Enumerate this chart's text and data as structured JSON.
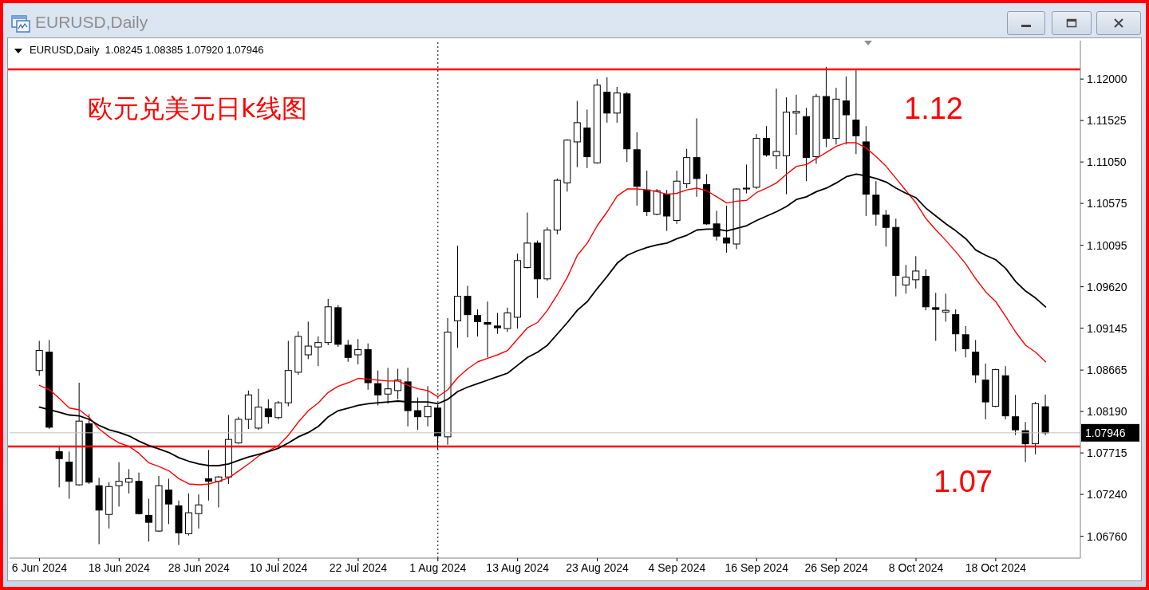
{
  "chart_data": {
    "type": "candlestick",
    "title": "EURUSD,Daily",
    "subtitle": "EURUSD,Daily  1.08245 1.08385 1.07920 1.07946",
    "annotations": [
      "欧元兑美元日k线图",
      "1.07"
    ],
    "color": "#000000",
    "categories": [
      "6 Jun 2024",
      null,
      null,
      null,
      null,
      null,
      null,
      null,
      "18 Jun 2024",
      null,
      null,
      null,
      null,
      null,
      null,
      null,
      "28 Jun 2024",
      null,
      null,
      null,
      null,
      null,
      null,
      null,
      "10 Jul 2024",
      null,
      null,
      null,
      null,
      null,
      null,
      null,
      "22 Jul 2024",
      null,
      null,
      null,
      null,
      null,
      null,
      null,
      "1 Aug 2024",
      null,
      null,
      null,
      null,
      null,
      null,
      null,
      "13 Aug 2024",
      null,
      null,
      null,
      null,
      null,
      null,
      null,
      "23 Aug 2024",
      null,
      null,
      null,
      null,
      null,
      null,
      null,
      "4 Sep 2024",
      null,
      null,
      null,
      null,
      null,
      null,
      null,
      "16 Sep 2024",
      null,
      null,
      null,
      null,
      null,
      null,
      null,
      "26 Sep 2024",
      null,
      null,
      null,
      null,
      null,
      null,
      null,
      "8 Oct 2024",
      null,
      null,
      null,
      null,
      null,
      null,
      null,
      "18 Oct 2024",
      null,
      null,
      null,
      null,
      null
    ],
    "ohlc": [
      [
        1.0866,
        1.09,
        1.086,
        1.0889
      ],
      [
        1.0887,
        1.0901,
        1.0799,
        1.0801
      ],
      [
        1.0773,
        1.078,
        1.0732,
        1.0765
      ],
      [
        1.0761,
        1.0773,
        1.0719,
        1.0739
      ],
      [
        1.0735,
        1.0852,
        1.0734,
        1.0808
      ],
      [
        1.0805,
        1.0816,
        1.0736,
        1.0738
      ],
      [
        1.0734,
        1.0743,
        1.0667,
        1.0706
      ],
      [
        1.0701,
        1.0738,
        1.0685,
        1.0733
      ],
      [
        1.0734,
        1.0761,
        1.071,
        1.0739
      ],
      [
        1.0738,
        1.0753,
        1.0725,
        1.0742
      ],
      [
        1.0739,
        1.0749,
        1.0701,
        1.0702
      ],
      [
        1.07,
        1.0719,
        1.067,
        1.0692
      ],
      [
        1.0682,
        1.0745,
        1.0681,
        1.0734
      ],
      [
        1.0729,
        1.0742,
        1.069,
        1.0713
      ],
      [
        1.0711,
        1.0717,
        1.0666,
        1.068
      ],
      [
        1.0679,
        1.0725,
        1.0677,
        1.0703
      ],
      [
        1.0702,
        1.0724,
        1.0685,
        1.0712
      ],
      [
        1.0742,
        1.0775,
        1.0717,
        1.0739
      ],
      [
        1.0739,
        1.0745,
        1.0709,
        1.0744
      ],
      [
        1.0744,
        1.0815,
        1.0736,
        1.0787
      ],
      [
        1.0783,
        1.0813,
        1.0782,
        1.081
      ],
      [
        1.081,
        1.0843,
        1.0799,
        1.0838
      ],
      [
        1.08,
        1.0845,
        1.0798,
        1.0824
      ],
      [
        1.0822,
        1.0833,
        1.0805,
        1.0813
      ],
      [
        1.0812,
        1.0831,
        1.081,
        1.0829
      ],
      [
        1.0829,
        1.09,
        1.0825,
        1.0866
      ],
      [
        1.0864,
        1.0911,
        1.0861,
        1.0905
      ],
      [
        1.0884,
        1.0922,
        1.0879,
        1.0894
      ],
      [
        1.0893,
        1.0905,
        1.0871,
        1.0898
      ],
      [
        1.0898,
        1.0948,
        1.0895,
        1.0939
      ],
      [
        1.0938,
        1.0941,
        1.0893,
        1.0896
      ],
      [
        1.0895,
        1.0901,
        1.0876,
        1.0881
      ],
      [
        1.0884,
        1.0902,
        1.0873,
        1.089
      ],
      [
        1.089,
        1.0897,
        1.0844,
        1.0852
      ],
      [
        1.0851,
        1.0866,
        1.0826,
        1.0838
      ],
      [
        1.0839,
        1.0869,
        1.0828,
        1.0845
      ],
      [
        1.0843,
        1.0868,
        1.0833,
        1.0855
      ],
      [
        1.0853,
        1.0869,
        1.0802,
        1.082
      ],
      [
        1.082,
        1.0835,
        1.0798,
        1.0813
      ],
      [
        1.0813,
        1.0848,
        1.0802,
        1.0825
      ],
      [
        1.0823,
        1.0827,
        1.0776,
        1.0791
      ],
      [
        1.079,
        1.0926,
        1.0781,
        1.091
      ],
      [
        1.0923,
        1.1009,
        1.0892,
        1.0951
      ],
      [
        1.0951,
        1.0963,
        1.0904,
        1.093
      ],
      [
        1.0929,
        1.0936,
        1.0905,
        1.0922
      ],
      [
        1.0921,
        1.0945,
        1.0881,
        1.0919
      ],
      [
        1.0917,
        1.0932,
        1.0908,
        1.0915
      ],
      [
        1.0914,
        1.0938,
        1.091,
        1.0932
      ],
      [
        1.0927,
        1.1,
        1.0914,
        1.0992
      ],
      [
        1.0984,
        1.1047,
        1.0983,
        1.1012
      ],
      [
        1.1012,
        1.1015,
        1.0949,
        1.0971
      ],
      [
        1.0971,
        1.103,
        1.0969,
        1.1027
      ],
      [
        1.1027,
        1.1086,
        1.1022,
        1.1084
      ],
      [
        1.1081,
        1.1131,
        1.1071,
        1.113
      ],
      [
        1.1128,
        1.1175,
        1.1099,
        1.115
      ],
      [
        1.1144,
        1.1165,
        1.1098,
        1.1111
      ],
      [
        1.1104,
        1.12,
        1.1103,
        1.1193
      ],
      [
        1.1185,
        1.1202,
        1.115,
        1.1161
      ],
      [
        1.1161,
        1.1191,
        1.115,
        1.1184
      ],
      [
        1.1183,
        1.1185,
        1.1105,
        1.112
      ],
      [
        1.1119,
        1.1139,
        1.1055,
        1.1077
      ],
      [
        1.1073,
        1.1095,
        1.1043,
        1.1048
      ],
      [
        1.1045,
        1.1074,
        1.1044,
        1.1072
      ],
      [
        1.1068,
        1.1073,
        1.1026,
        1.1043
      ],
      [
        1.1038,
        1.1095,
        1.1034,
        1.1083
      ],
      [
        1.108,
        1.112,
        1.1075,
        1.111
      ],
      [
        1.111,
        1.1155,
        1.1065,
        1.1086
      ],
      [
        1.1079,
        1.1091,
        1.1033,
        1.1034
      ],
      [
        1.1034,
        1.1049,
        1.1015,
        1.102
      ],
      [
        1.1018,
        1.1055,
        1.1001,
        1.1012
      ],
      [
        1.1011,
        1.1075,
        1.1005,
        1.1074
      ],
      [
        1.1074,
        1.1102,
        1.1069,
        1.1075
      ],
      [
        1.1076,
        1.1137,
        1.1074,
        1.1132
      ],
      [
        1.1132,
        1.1146,
        1.1111,
        1.1113
      ],
      [
        1.1112,
        1.1189,
        1.1097,
        1.1117
      ],
      [
        1.1112,
        1.1179,
        1.1068,
        1.1162
      ],
      [
        1.1161,
        1.1182,
        1.1136,
        1.1163
      ],
      [
        1.1157,
        1.1167,
        1.1083,
        1.111
      ],
      [
        1.1111,
        1.1183,
        1.1103,
        1.118
      ],
      [
        1.118,
        1.1214,
        1.1122,
        1.1132
      ],
      [
        1.1132,
        1.119,
        1.1125,
        1.1177
      ],
      [
        1.1175,
        1.1203,
        1.1125,
        1.1159
      ],
      [
        1.1153,
        1.121,
        1.1114,
        1.1135
      ],
      [
        1.1128,
        1.1146,
        1.1043,
        1.1068
      ],
      [
        1.1067,
        1.1083,
        1.1032,
        1.1045
      ],
      [
        1.1044,
        1.105,
        1.1008,
        1.103
      ],
      [
        1.103,
        1.104,
        1.0951,
        1.0975
      ],
      [
        1.0964,
        1.0987,
        1.0954,
        1.0973
      ],
      [
        1.097,
        1.0997,
        1.096,
        1.098
      ],
      [
        1.0974,
        1.0982,
        1.0935,
        1.0939
      ],
      [
        1.0938,
        1.0955,
        1.09,
        1.0936
      ],
      [
        1.0933,
        1.0954,
        1.0922,
        1.0935
      ],
      [
        1.093,
        1.0936,
        1.0888,
        1.0908
      ],
      [
        1.0907,
        1.0917,
        1.0881,
        1.0891
      ],
      [
        1.0887,
        1.0901,
        1.0852,
        1.0861
      ],
      [
        1.0855,
        1.0874,
        1.081,
        1.083
      ],
      [
        1.0825,
        1.0868,
        1.0824,
        1.0867
      ],
      [
        1.086,
        1.0871,
        1.081,
        1.0814
      ],
      [
        1.0813,
        1.0838,
        1.0792,
        1.0798
      ],
      [
        1.0797,
        1.0807,
        1.0761,
        1.0782
      ],
      [
        1.0782,
        1.083,
        1.077,
        1.0828
      ],
      [
        1.08245,
        1.08385,
        1.0792,
        1.07946
      ]
    ],
    "series": [
      {
        "type": "line",
        "color": "#ff0000",
        "values": [
          1.0849,
          1.0844,
          1.0834,
          1.0823,
          1.0821,
          1.0812,
          1.0799,
          1.079,
          1.0783,
          1.0779,
          1.0771,
          1.076,
          1.0756,
          1.0751,
          1.0742,
          1.0736,
          1.0735,
          1.0736,
          1.0739,
          1.0743,
          1.0751,
          1.0759,
          1.0768,
          1.0774,
          1.078,
          1.0792,
          1.0807,
          1.082,
          1.0829,
          1.0841,
          1.0848,
          1.0852,
          1.0857,
          1.0856,
          1.0855,
          1.0854,
          1.0854,
          1.0849,
          1.0845,
          1.0843,
          1.0836,
          1.0844,
          1.0858,
          1.0868,
          1.0876,
          1.088,
          1.0884,
          1.0889,
          1.0902,
          1.0915,
          1.0921,
          1.0935,
          1.0953,
          1.0973,
          1.0998,
          1.1012,
          1.1032,
          1.1048,
          1.1066,
          1.1074,
          1.1074,
          1.1073,
          1.1071,
          1.1068,
          1.1069,
          1.1073,
          1.1075,
          1.1072,
          1.1065,
          1.1058,
          1.106,
          1.1061,
          1.107,
          1.1075,
          1.1081,
          1.1091,
          1.11,
          1.1102,
          1.1109,
          1.1116,
          1.1123,
          1.1127,
          1.1127,
          1.1121,
          1.1111,
          1.11,
          1.1086,
          1.1072,
          1.1058,
          1.104,
          1.1027,
          1.1015,
          1.1002,
          1.0988,
          1.0971,
          1.0956,
          1.0945,
          1.0928,
          1.091,
          1.0895,
          1.0887,
          1.0876
        ]
      },
      {
        "type": "line",
        "color": "#000000",
        "values": [
          1.0824,
          1.0821,
          1.0818,
          1.0815,
          1.0814,
          1.081,
          1.0803,
          1.0798,
          1.0795,
          1.0791,
          1.0785,
          1.078,
          1.0776,
          1.0772,
          1.0766,
          1.0762,
          1.0759,
          1.0757,
          1.0757,
          1.0759,
          1.0763,
          1.0767,
          1.077,
          1.0773,
          1.0777,
          1.0783,
          1.079,
          1.0795,
          1.0802,
          1.0813,
          1.082,
          1.0823,
          1.0826,
          1.0828,
          1.0829,
          1.083,
          1.0831,
          1.083,
          1.083,
          1.083,
          1.0828,
          1.0833,
          1.0842,
          1.0847,
          1.0851,
          1.0855,
          1.0859,
          1.0863,
          1.0872,
          1.0881,
          1.0887,
          1.0895,
          1.0908,
          1.0921,
          1.0935,
          1.0945,
          1.096,
          1.0974,
          1.0989,
          1.0998,
          1.1003,
          1.1007,
          1.101,
          1.1012,
          1.1017,
          1.1021,
          1.1027,
          1.1028,
          1.1028,
          1.1026,
          1.1029,
          1.1032,
          1.1038,
          1.1043,
          1.1048,
          1.1054,
          1.1062,
          1.1065,
          1.1071,
          1.1075,
          1.1081,
          1.1088,
          1.1091,
          1.1089,
          1.1086,
          1.1082,
          1.1075,
          1.1069,
          1.1064,
          1.1052,
          1.1043,
          1.1034,
          1.1026,
          1.1017,
          1.1004,
          1.0998,
          1.0993,
          1.0983,
          1.0968,
          1.0957,
          1.0949,
          1.0939
        ]
      }
    ],
    "ylim": [
      1.0651,
      1.1244
    ],
    "yticks": [
      {
        "value": 1.12,
        "label": "1.12000"
      },
      1.11525,
      {
        "value": 1.1105,
        "label": "1.11050"
      },
      1.10575,
      1.10095,
      {
        "value": 1.0962,
        "label": "1.09620"
      },
      1.09145,
      1.08665,
      {
        "value": 1.0819,
        "label": "1.08190"
      },
      1.07715,
      {
        "value": 1.0724,
        "label": "1.07240"
      },
      {
        "value": 1.0676,
        "label": "1.06760"
      }
    ],
    "ref_lines": [
      {
        "axis": "y",
        "value": 1.1211,
        "label": "1.12",
        "color": "#ff0000"
      },
      {
        "axis": "y",
        "value": 1.0779,
        "color": "#ff0000"
      },
      {
        "axis": "y",
        "value": 1.07946,
        "label": "1.07946",
        "color": "#c0c0c0"
      },
      {
        "axis": "x",
        "value": "1 Aug 2024",
        "color": "#000000",
        "line_style": "dotted"
      }
    ]
  }
}
